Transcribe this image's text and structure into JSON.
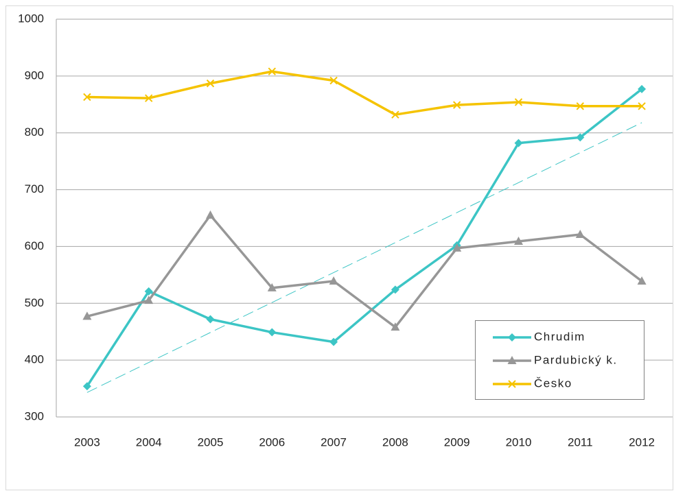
{
  "chart_data": {
    "type": "line",
    "categories": [
      "2003",
      "2004",
      "2005",
      "2006",
      "2007",
      "2008",
      "2009",
      "2010",
      "2011",
      "2012"
    ],
    "series": [
      {
        "name": "Chrudim",
        "color": "#3cc5c5",
        "marker": "diamond",
        "trendline": true,
        "values": [
          354,
          521,
          472,
          449,
          432,
          524,
          602,
          782,
          792,
          877
        ]
      },
      {
        "name": "Pardubický k.",
        "color": "#979797",
        "marker": "triangle",
        "values": [
          477,
          505,
          655,
          527,
          539,
          458,
          597,
          609,
          621,
          539
        ]
      },
      {
        "name": "Česko",
        "color": "#f5c300",
        "marker": "x",
        "values": [
          863,
          861,
          887,
          908,
          892,
          832,
          849,
          854,
          847,
          847
        ]
      }
    ],
    "ylim": [
      300,
      1000
    ],
    "yticks": [
      300,
      400,
      500,
      600,
      700,
      800,
      900,
      1000
    ],
    "grid": true,
    "legend": "lower right"
  }
}
